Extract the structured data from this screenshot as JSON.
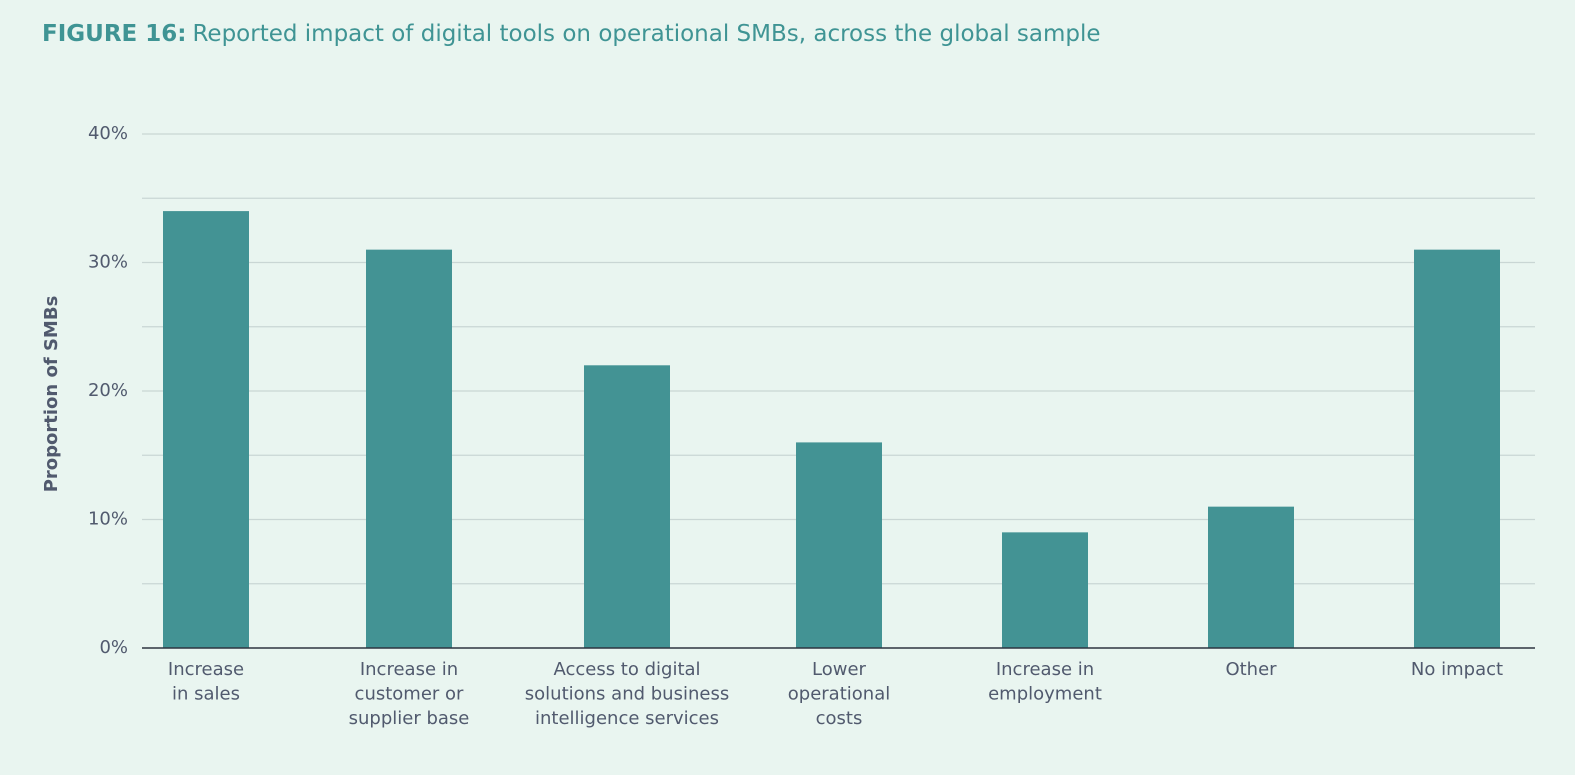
{
  "chart_data": {
    "type": "bar",
    "title_label": "FIGURE 16:",
    "title": "Reported impact of digital tools on operational SMBs, across the global sample",
    "y_label": "Proportion of SMBs",
    "categories": [
      [
        "Increase",
        "in sales"
      ],
      [
        "Increase in",
        "customer or",
        "supplier base"
      ],
      [
        "Access to digital",
        "solutions and business",
        "intelligence services"
      ],
      [
        "Lower",
        "operational",
        "costs"
      ],
      [
        "Increase in",
        "employment"
      ],
      [
        "Other"
      ],
      [
        "No impact"
      ]
    ],
    "values": [
      34,
      31,
      22,
      16,
      9,
      11,
      31
    ],
    "color": "#439394",
    "ylim": [
      0,
      40
    ],
    "yticks": [
      {
        "value": 0,
        "label": "0%"
      },
      {
        "value": 10,
        "label": "10%"
      },
      {
        "value": 20,
        "label": "20%"
      },
      {
        "value": 30,
        "label": "30%"
      },
      {
        "value": 40,
        "label": "40%"
      }
    ],
    "minor_yticks": [
      5,
      15,
      25,
      35
    ],
    "grid": true
  }
}
